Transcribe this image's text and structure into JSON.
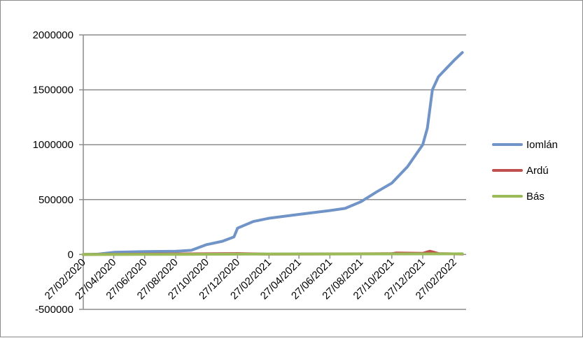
{
  "chart_data": {
    "type": "line",
    "title": "",
    "xlabel": "",
    "ylabel": "",
    "x_tick_labels": [
      "27/02/2020",
      "27/04/2020",
      "27/06/2020",
      "27/08/2020",
      "27/10/2020",
      "27/12/2020",
      "27/02/2021",
      "27/04/2021",
      "27/06/2021",
      "27/08/2021",
      "27/10/2021",
      "27/12/2021",
      "27/02/2022"
    ],
    "y_tick_labels": [
      "2000000",
      "1500000",
      "1000000",
      "500000",
      "0",
      "-500000"
    ],
    "ylim": [
      -500000,
      2000000
    ],
    "grid": "horizontal",
    "legend_position": "right",
    "series": [
      {
        "name": "Iomlán",
        "color": "#7094c8",
        "points": [
          [
            "27/02/2020",
            0
          ],
          [
            "27/03/2020",
            3000
          ],
          [
            "27/04/2020",
            20000
          ],
          [
            "27/06/2020",
            26000
          ],
          [
            "27/08/2020",
            29000
          ],
          [
            "27/09/2020",
            38000
          ],
          [
            "27/10/2020",
            90000
          ],
          [
            "27/11/2020",
            120000
          ],
          [
            "20/12/2020",
            160000
          ],
          [
            "27/12/2020",
            240000
          ],
          [
            "27/01/2021",
            300000
          ],
          [
            "27/02/2021",
            330000
          ],
          [
            "27/04/2021",
            365000
          ],
          [
            "27/06/2021",
            400000
          ],
          [
            "27/07/2021",
            420000
          ],
          [
            "27/08/2021",
            480000
          ],
          [
            "27/09/2021",
            570000
          ],
          [
            "27/10/2021",
            650000
          ],
          [
            "27/11/2021",
            800000
          ],
          [
            "27/12/2021",
            1000000
          ],
          [
            "05/01/2022",
            1150000
          ],
          [
            "15/01/2022",
            1500000
          ],
          [
            "27/01/2022",
            1620000
          ],
          [
            "27/02/2022",
            1770000
          ],
          [
            "15/03/2022",
            1840000
          ]
        ]
      },
      {
        "name": "Ardú",
        "color": "#c0504d",
        "points": [
          [
            "27/02/2020",
            0
          ],
          [
            "27/12/2020",
            8000
          ],
          [
            "27/02/2021",
            3000
          ],
          [
            "27/10/2021",
            7000
          ],
          [
            "05/11/2021",
            14000
          ],
          [
            "27/12/2021",
            10000
          ],
          [
            "10/01/2022",
            30000
          ],
          [
            "27/01/2022",
            8000
          ],
          [
            "15/03/2022",
            4000
          ]
        ]
      },
      {
        "name": "Bás",
        "color": "#9bbb59",
        "points": [
          [
            "27/02/2020",
            0
          ],
          [
            "27/08/2020",
            1500
          ],
          [
            "27/02/2021",
            4000
          ],
          [
            "27/08/2021",
            5000
          ],
          [
            "27/02/2022",
            6000
          ],
          [
            "15/03/2022",
            6500
          ]
        ]
      }
    ]
  }
}
